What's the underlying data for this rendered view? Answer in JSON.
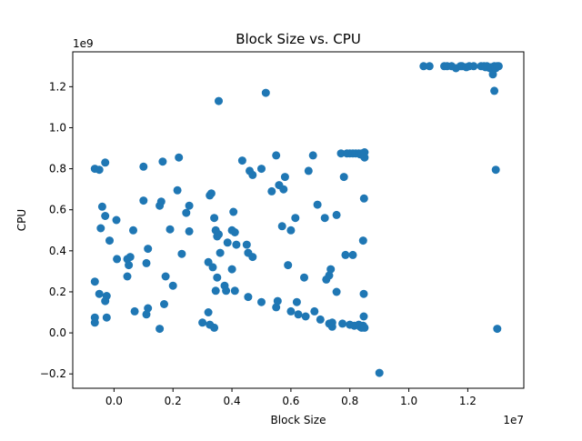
{
  "chart_data": {
    "type": "scatter",
    "title": "Block Size vs. CPU",
    "xlabel": "Block Size",
    "ylabel": "CPU",
    "x_offset_label": "1e7",
    "y_offset_label": "1e9",
    "xlim": [
      -0.14,
      1.39
    ],
    "ylim": [
      -0.27,
      1.37
    ],
    "xticks": [
      0.0,
      0.2,
      0.4,
      0.6,
      0.8,
      1.0,
      1.2
    ],
    "xtick_labels": [
      "0.0",
      "0.2",
      "0.4",
      "0.6",
      "0.8",
      "1.0",
      "1.2"
    ],
    "yticks": [
      -0.2,
      0.0,
      0.2,
      0.4,
      0.6,
      0.8,
      1.0,
      1.2
    ],
    "ytick_labels": [
      "−0.2",
      "0.0",
      "0.2",
      "0.4",
      "0.6",
      "0.8",
      "1.0",
      "1.2"
    ],
    "marker_color": "#1f77b4",
    "grid": false,
    "points": [
      [
        -0.065,
        0.8
      ],
      [
        -0.05,
        0.795
      ],
      [
        -0.03,
        0.83
      ],
      [
        -0.04,
        0.615
      ],
      [
        -0.03,
        0.57
      ],
      [
        -0.045,
        0.51
      ],
      [
        -0.015,
        0.45
      ],
      [
        0.008,
        0.55
      ],
      [
        0.01,
        0.36
      ],
      [
        -0.065,
        0.25
      ],
      [
        -0.05,
        0.19
      ],
      [
        -0.025,
        0.18
      ],
      [
        -0.03,
        0.155
      ],
      [
        -0.065,
        0.075
      ],
      [
        -0.065,
        0.05
      ],
      [
        -0.025,
        0.075
      ],
      [
        0.045,
        0.36
      ],
      [
        0.055,
        0.37
      ],
      [
        0.05,
        0.33
      ],
      [
        0.045,
        0.275
      ],
      [
        0.065,
        0.5
      ],
      [
        0.07,
        0.105
      ],
      [
        0.1,
        0.81
      ],
      [
        0.1,
        0.645
      ],
      [
        0.115,
        0.41
      ],
      [
        0.11,
        0.34
      ],
      [
        0.115,
        0.12
      ],
      [
        0.11,
        0.09
      ],
      [
        0.155,
        0.62
      ],
      [
        0.16,
        0.64
      ],
      [
        0.165,
        0.835
      ],
      [
        0.17,
        0.14
      ],
      [
        0.175,
        0.275
      ],
      [
        0.155,
        0.02
      ],
      [
        0.19,
        0.505
      ],
      [
        0.2,
        0.23
      ],
      [
        0.215,
        0.695
      ],
      [
        0.22,
        0.855
      ],
      [
        0.23,
        0.385
      ],
      [
        0.245,
        0.585
      ],
      [
        0.255,
        0.62
      ],
      [
        0.255,
        0.495
      ],
      [
        0.3,
        0.05
      ],
      [
        0.32,
        0.345
      ],
      [
        0.325,
        0.67
      ],
      [
        0.33,
        0.68
      ],
      [
        0.32,
        0.1
      ],
      [
        0.325,
        0.04
      ],
      [
        0.335,
        0.32
      ],
      [
        0.34,
        0.56
      ],
      [
        0.345,
        0.5
      ],
      [
        0.35,
        0.47
      ],
      [
        0.35,
        0.27
      ],
      [
        0.345,
        0.205
      ],
      [
        0.34,
        0.025
      ],
      [
        0.355,
        1.13
      ],
      [
        0.355,
        0.48
      ],
      [
        0.36,
        0.39
      ],
      [
        0.375,
        0.23
      ],
      [
        0.38,
        0.205
      ],
      [
        0.385,
        0.44
      ],
      [
        0.4,
        0.5
      ],
      [
        0.405,
        0.59
      ],
      [
        0.41,
        0.49
      ],
      [
        0.4,
        0.31
      ],
      [
        0.41,
        0.205
      ],
      [
        0.415,
        0.43
      ],
      [
        0.435,
        0.84
      ],
      [
        0.45,
        0.43
      ],
      [
        0.455,
        0.39
      ],
      [
        0.46,
        0.79
      ],
      [
        0.47,
        0.77
      ],
      [
        0.47,
        0.37
      ],
      [
        0.455,
        0.175
      ],
      [
        0.5,
        0.8
      ],
      [
        0.5,
        0.15
      ],
      [
        0.515,
        1.17
      ],
      [
        0.535,
        0.69
      ],
      [
        0.55,
        0.865
      ],
      [
        0.56,
        0.72
      ],
      [
        0.57,
        0.52
      ],
      [
        0.575,
        0.7
      ],
      [
        0.58,
        0.76
      ],
      [
        0.55,
        0.125
      ],
      [
        0.555,
        0.155
      ],
      [
        0.59,
        0.33
      ],
      [
        0.6,
        0.5
      ],
      [
        0.6,
        0.105
      ],
      [
        0.615,
        0.56
      ],
      [
        0.62,
        0.15
      ],
      [
        0.625,
        0.09
      ],
      [
        0.645,
        0.27
      ],
      [
        0.65,
        0.08
      ],
      [
        0.66,
        0.79
      ],
      [
        0.675,
        0.865
      ],
      [
        0.68,
        0.105
      ],
      [
        0.69,
        0.625
      ],
      [
        0.7,
        0.065
      ],
      [
        0.715,
        0.56
      ],
      [
        0.72,
        0.26
      ],
      [
        0.73,
        0.28
      ],
      [
        0.735,
        0.31
      ],
      [
        0.73,
        0.045
      ],
      [
        0.74,
        0.03
      ],
      [
        0.74,
        0.05
      ],
      [
        0.755,
        0.575
      ],
      [
        0.755,
        0.2
      ],
      [
        0.77,
        0.875
      ],
      [
        0.775,
        0.045
      ],
      [
        0.78,
        0.76
      ],
      [
        0.785,
        0.38
      ],
      [
        0.79,
        0.875
      ],
      [
        0.8,
        0.875
      ],
      [
        0.81,
        0.875
      ],
      [
        0.82,
        0.875
      ],
      [
        0.83,
        0.875
      ],
      [
        0.835,
        0.87
      ],
      [
        0.84,
        0.875
      ],
      [
        0.845,
        0.875
      ],
      [
        0.845,
        0.865
      ],
      [
        0.85,
        0.855
      ],
      [
        0.85,
        0.88
      ],
      [
        0.84,
        0.87
      ],
      [
        0.81,
        0.38
      ],
      [
        0.8,
        0.04
      ],
      [
        0.815,
        0.035
      ],
      [
        0.83,
        0.04
      ],
      [
        0.835,
        0.03
      ],
      [
        0.84,
        0.025
      ],
      [
        0.845,
        0.035
      ],
      [
        0.85,
        0.025
      ],
      [
        0.845,
        0.45
      ],
      [
        0.848,
        0.655
      ],
      [
        0.847,
        0.19
      ],
      [
        0.847,
        0.08
      ],
      [
        0.9,
        -0.195
      ],
      [
        1.05,
        1.3
      ],
      [
        1.07,
        1.3
      ],
      [
        1.12,
        1.3
      ],
      [
        1.13,
        1.3
      ],
      [
        1.145,
        1.3
      ],
      [
        1.16,
        1.29
      ],
      [
        1.175,
        1.3
      ],
      [
        1.18,
        1.3
      ],
      [
        1.195,
        1.295
      ],
      [
        1.205,
        1.3
      ],
      [
        1.22,
        1.3
      ],
      [
        1.245,
        1.3
      ],
      [
        1.255,
        1.3
      ],
      [
        1.26,
        1.295
      ],
      [
        1.265,
        1.3
      ],
      [
        1.275,
        1.29
      ],
      [
        1.28,
        1.295
      ],
      [
        1.285,
        1.26
      ],
      [
        1.29,
        1.3
      ],
      [
        1.295,
        1.29
      ],
      [
        1.3,
        1.3
      ],
      [
        1.305,
        1.3
      ],
      [
        1.29,
        1.18
      ],
      [
        1.295,
        0.795
      ],
      [
        1.3,
        0.02
      ]
    ]
  }
}
